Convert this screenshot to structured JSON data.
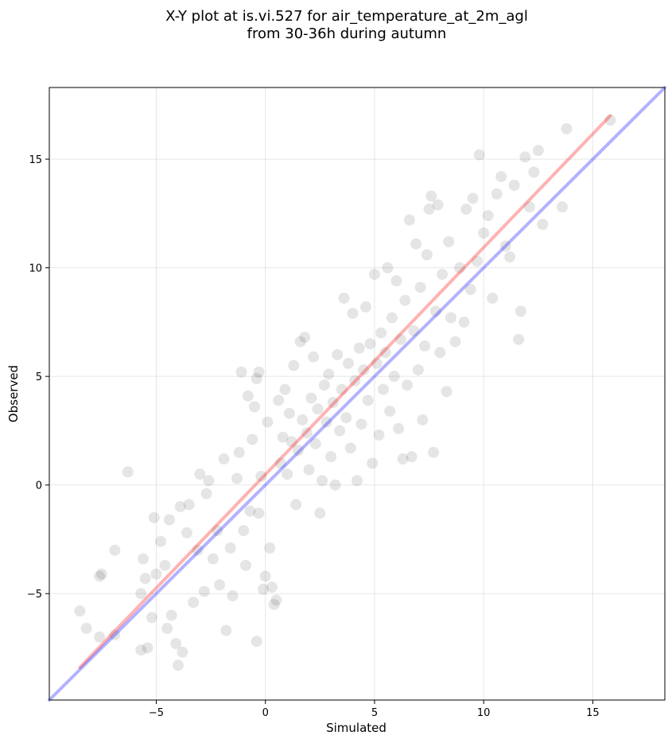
{
  "chart_data": {
    "type": "scatter",
    "title": "X-Y plot at is.vi.527 for air_temperature_at_2m_agl",
    "subtitle": "from 30-36h during autumn",
    "xlabel": "Simulated",
    "ylabel": "Observed",
    "xlim": [
      -9.9,
      18.3
    ],
    "ylim": [
      -9.9,
      18.3
    ],
    "xticks": [
      -5,
      0,
      5,
      10,
      15
    ],
    "yticks": [
      -5,
      0,
      5,
      10,
      15
    ],
    "xtick_labels": [
      "−5",
      "0",
      "5",
      "10",
      "15"
    ],
    "ytick_labels": [
      "−5",
      "0",
      "5",
      "10",
      "15"
    ],
    "grid": true,
    "point_color": "#000000",
    "point_opacity": 0.1,
    "series": [
      {
        "kind": "scatter",
        "points": [
          [
            -8.5,
            -5.8
          ],
          [
            -8.2,
            -6.6
          ],
          [
            -7.6,
            -4.2
          ],
          [
            -7.5,
            -4.1
          ],
          [
            -7.6,
            -7.0
          ],
          [
            -6.9,
            -3.0
          ],
          [
            -6.9,
            -6.9
          ],
          [
            -6.3,
            0.6
          ],
          [
            -5.7,
            -5.0
          ],
          [
            -5.7,
            -7.6
          ],
          [
            -5.6,
            -3.4
          ],
          [
            -5.5,
            -4.3
          ],
          [
            -5.4,
            -7.5
          ],
          [
            -5.2,
            -6.1
          ],
          [
            -5.1,
            -1.5
          ],
          [
            -5.0,
            -4.1
          ],
          [
            -4.8,
            -2.6
          ],
          [
            -4.6,
            -3.7
          ],
          [
            -4.5,
            -6.6
          ],
          [
            -4.4,
            -1.6
          ],
          [
            -4.3,
            -6.0
          ],
          [
            -4.1,
            -7.3
          ],
          [
            -4.0,
            -8.3
          ],
          [
            -3.9,
            -1.0
          ],
          [
            -3.8,
            -7.7
          ],
          [
            -3.6,
            -2.2
          ],
          [
            -3.5,
            -0.9
          ],
          [
            -3.3,
            -5.4
          ],
          [
            -3.1,
            -3.0
          ],
          [
            -3.0,
            0.5
          ],
          [
            -2.8,
            -4.9
          ],
          [
            -2.7,
            -0.4
          ],
          [
            -2.6,
            0.2
          ],
          [
            -2.4,
            -3.4
          ],
          [
            -2.2,
            -2.1
          ],
          [
            -2.1,
            -4.6
          ],
          [
            -1.9,
            1.2
          ],
          [
            -1.8,
            -6.7
          ],
          [
            -1.6,
            -2.9
          ],
          [
            -1.5,
            -5.1
          ],
          [
            -1.3,
            0.3
          ],
          [
            -1.2,
            1.5
          ],
          [
            -1.1,
            5.2
          ],
          [
            -1.0,
            -2.1
          ],
          [
            -0.9,
            -3.7
          ],
          [
            -0.8,
            4.1
          ],
          [
            -0.7,
            -1.2
          ],
          [
            -0.6,
            2.1
          ],
          [
            -0.5,
            3.6
          ],
          [
            -0.4,
            -7.2
          ],
          [
            -0.4,
            4.9
          ],
          [
            -0.3,
            5.2
          ],
          [
            -0.3,
            -1.3
          ],
          [
            -0.2,
            0.4
          ],
          [
            -0.1,
            -4.8
          ],
          [
            0.0,
            -4.2
          ],
          [
            0.1,
            2.9
          ],
          [
            0.2,
            -2.9
          ],
          [
            0.3,
            -4.7
          ],
          [
            0.4,
            -5.5
          ],
          [
            0.5,
            -5.3
          ],
          [
            0.6,
            3.9
          ],
          [
            0.7,
            1.0
          ],
          [
            0.8,
            2.2
          ],
          [
            0.9,
            4.4
          ],
          [
            1.0,
            0.5
          ],
          [
            1.1,
            3.3
          ],
          [
            1.2,
            2.0
          ],
          [
            1.3,
            5.5
          ],
          [
            1.4,
            -0.9
          ],
          [
            1.5,
            1.6
          ],
          [
            1.6,
            6.6
          ],
          [
            1.7,
            3.0
          ],
          [
            1.8,
            6.8
          ],
          [
            1.9,
            2.4
          ],
          [
            2.0,
            0.7
          ],
          [
            2.1,
            4.0
          ],
          [
            2.2,
            5.9
          ],
          [
            2.3,
            1.9
          ],
          [
            2.4,
            3.5
          ],
          [
            2.5,
            -1.3
          ],
          [
            2.6,
            0.2
          ],
          [
            2.7,
            4.6
          ],
          [
            2.8,
            2.9
          ],
          [
            2.9,
            5.1
          ],
          [
            3.0,
            1.3
          ],
          [
            3.1,
            3.8
          ],
          [
            3.2,
            0.0
          ],
          [
            3.3,
            6.0
          ],
          [
            3.4,
            2.5
          ],
          [
            3.5,
            4.4
          ],
          [
            3.6,
            8.6
          ],
          [
            3.7,
            3.1
          ],
          [
            3.8,
            5.6
          ],
          [
            3.9,
            1.7
          ],
          [
            4.0,
            7.9
          ],
          [
            4.1,
            4.8
          ],
          [
            4.2,
            0.2
          ],
          [
            4.3,
            6.3
          ],
          [
            4.4,
            2.8
          ],
          [
            4.5,
            5.3
          ],
          [
            4.6,
            8.2
          ],
          [
            4.7,
            3.9
          ],
          [
            4.8,
            6.5
          ],
          [
            4.9,
            1.0
          ],
          [
            5.0,
            9.7
          ],
          [
            5.1,
            5.6
          ],
          [
            5.2,
            2.3
          ],
          [
            5.3,
            7.0
          ],
          [
            5.4,
            4.4
          ],
          [
            5.5,
            6.1
          ],
          [
            5.6,
            10.0
          ],
          [
            5.7,
            3.4
          ],
          [
            5.8,
            7.7
          ],
          [
            5.9,
            5.0
          ],
          [
            6.0,
            9.4
          ],
          [
            6.1,
            2.6
          ],
          [
            6.2,
            6.7
          ],
          [
            6.3,
            1.2
          ],
          [
            6.4,
            8.5
          ],
          [
            6.5,
            4.6
          ],
          [
            6.6,
            12.2
          ],
          [
            6.7,
            1.3
          ],
          [
            6.8,
            7.1
          ],
          [
            6.9,
            11.1
          ],
          [
            7.0,
            5.3
          ],
          [
            7.1,
            9.1
          ],
          [
            7.2,
            3.0
          ],
          [
            7.3,
            6.4
          ],
          [
            7.4,
            10.6
          ],
          [
            7.5,
            12.7
          ],
          [
            7.6,
            13.3
          ],
          [
            7.7,
            1.5
          ],
          [
            7.8,
            8.0
          ],
          [
            7.9,
            12.9
          ],
          [
            8.0,
            6.1
          ],
          [
            8.1,
            9.7
          ],
          [
            8.3,
            4.3
          ],
          [
            8.4,
            11.2
          ],
          [
            8.5,
            7.7
          ],
          [
            8.7,
            6.6
          ],
          [
            8.9,
            10.0
          ],
          [
            9.1,
            7.5
          ],
          [
            9.2,
            12.7
          ],
          [
            9.4,
            9.0
          ],
          [
            9.5,
            13.2
          ],
          [
            9.7,
            10.3
          ],
          [
            9.8,
            15.2
          ],
          [
            10.0,
            11.6
          ],
          [
            10.2,
            12.4
          ],
          [
            10.4,
            8.6
          ],
          [
            10.6,
            13.4
          ],
          [
            10.8,
            14.2
          ],
          [
            11.0,
            11.0
          ],
          [
            11.2,
            10.5
          ],
          [
            11.4,
            13.8
          ],
          [
            11.6,
            6.7
          ],
          [
            11.7,
            8.0
          ],
          [
            11.9,
            15.1
          ],
          [
            12.1,
            12.8
          ],
          [
            12.3,
            14.4
          ],
          [
            12.5,
            15.4
          ],
          [
            12.7,
            12.0
          ],
          [
            13.6,
            12.8
          ],
          [
            13.8,
            16.4
          ],
          [
            15.8,
            16.8
          ]
        ]
      },
      {
        "kind": "line",
        "name": "",
        "color": "#ff0000",
        "opacity": 0.3,
        "x": [
          -8.5,
          15.8
        ],
        "y": [
          -8.4,
          17.0
        ]
      },
      {
        "kind": "line",
        "name": "",
        "color": "#0000ff",
        "opacity": 0.3,
        "x": [
          -9.9,
          18.3
        ],
        "y": [
          -9.9,
          18.3
        ]
      }
    ]
  }
}
